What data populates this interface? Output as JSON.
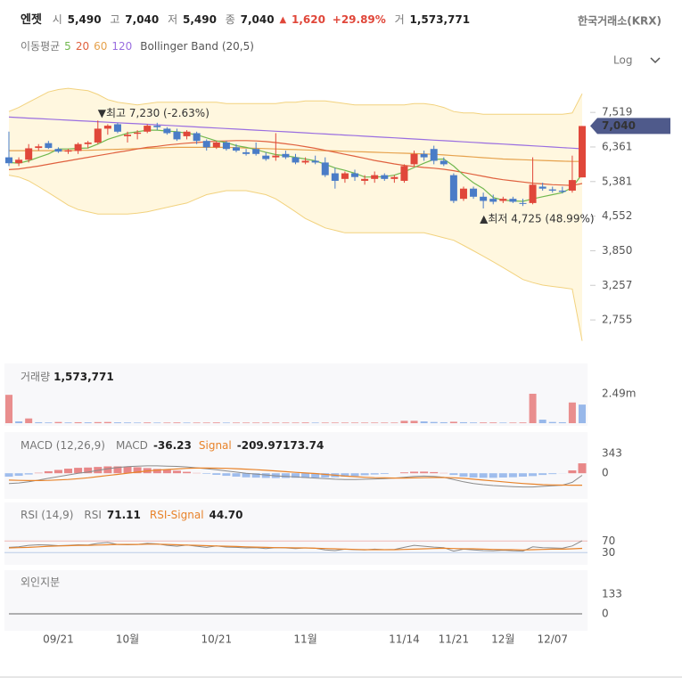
{
  "header": {
    "name": "엔젯",
    "open_label": "시",
    "open": "5,490",
    "high_label": "고",
    "high": "7,040",
    "low_label": "저",
    "low": "5,490",
    "close_label": "종",
    "close": "7,040",
    "change_arrow": "▲",
    "change": "1,620",
    "change_pct": "+29.89%",
    "volume_label": "거",
    "volume": "1,573,771",
    "exchange": "한국거래소(KRX)",
    "ma_label": "이동평균",
    "scale_button": "Log"
  },
  "chart_data": {
    "type": "candlestick",
    "log_scale": true,
    "categories": [
      null,
      null,
      null,
      null,
      null,
      "09/21",
      null,
      null,
      null,
      null,
      null,
      null,
      "10월",
      null,
      null,
      null,
      null,
      null,
      null,
      null,
      null,
      "10/21",
      null,
      null,
      null,
      null,
      null,
      null,
      null,
      null,
      "11월",
      null,
      null,
      null,
      null,
      null,
      null,
      null,
      null,
      null,
      "11/14",
      null,
      null,
      null,
      null,
      "11/21",
      null,
      null,
      null,
      null,
      "12월",
      null,
      null,
      null,
      null,
      "12/07",
      null,
      null,
      null
    ],
    "ylim": [
      2360,
      8600
    ],
    "yticks": [
      {
        "value": 7519,
        "label": "7,519"
      },
      {
        "value": 6361,
        "label": "6,361"
      },
      {
        "value": 5381,
        "label": "5,381"
      },
      {
        "value": 4552,
        "label": "4,552"
      },
      {
        "value": 3850,
        "label": "3,850"
      },
      {
        "value": 3257,
        "label": "3,257"
      },
      {
        "value": 2755,
        "label": "2,755"
      }
    ],
    "candles": {
      "up_color": "#e0473a",
      "down_color": "#4a7cc7",
      "open": [
        6050,
        5880,
        5980,
        6330,
        6480,
        6300,
        6220,
        6240,
        6450,
        6500,
        6950,
        7100,
        6700,
        6780,
        6850,
        7050,
        6950,
        6850,
        6700,
        6800,
        6550,
        6350,
        6500,
        6350,
        6200,
        6300,
        6100,
        6050,
        6150,
        6050,
        5900,
        5950,
        5900,
        5600,
        5450,
        5600,
        5400,
        5450,
        5550,
        5450,
        5400,
        5850,
        6150,
        6300,
        5950,
        5550,
        4950,
        5200,
        5000,
        4950,
        4900,
        4950,
        4850,
        4850,
        5250,
        5180,
        5150,
        5150,
        5490
      ],
      "high": [
        6850,
        6050,
        6450,
        6450,
        6550,
        6350,
        6300,
        6500,
        6550,
        7230,
        7100,
        7150,
        6850,
        6900,
        7100,
        7150,
        7000,
        6950,
        6900,
        6850,
        6600,
        6550,
        6550,
        6450,
        6300,
        6500,
        6200,
        6800,
        6250,
        6150,
        6050,
        6100,
        6050,
        5750,
        5650,
        5700,
        5550,
        5650,
        5600,
        5550,
        5850,
        6250,
        6250,
        6400,
        6050,
        5600,
        5250,
        5250,
        5100,
        5050,
        5000,
        5000,
        4950,
        6050,
        5350,
        5250,
        5250,
        6100,
        7040
      ],
      "low": [
        5800,
        5800,
        5900,
        6250,
        6300,
        6180,
        6150,
        6150,
        6320,
        6450,
        6750,
        6800,
        6500,
        6600,
        6800,
        6900,
        6750,
        6550,
        6600,
        6450,
        6250,
        6300,
        6250,
        6200,
        6100,
        6100,
        5950,
        5950,
        6000,
        5850,
        5850,
        5850,
        5500,
        5200,
        5350,
        5400,
        5300,
        5350,
        5400,
        5350,
        5350,
        5800,
        5950,
        5850,
        5800,
        4850,
        4900,
        4950,
        4725,
        4820,
        4850,
        4850,
        4780,
        4820,
        5150,
        5100,
        5080,
        5100,
        5490
      ],
      "close": [
        5880,
        5980,
        6320,
        6380,
        6330,
        6220,
        6260,
        6450,
        6500,
        6950,
        7050,
        6850,
        6750,
        6820,
        7050,
        7000,
        6800,
        6600,
        6850,
        6550,
        6350,
        6500,
        6300,
        6250,
        6150,
        6150,
        6000,
        6100,
        6050,
        5900,
        5950,
        5900,
        5550,
        5400,
        5600,
        5500,
        5450,
        5550,
        5450,
        5500,
        5800,
        6150,
        6050,
        5950,
        5850,
        4900,
        5200,
        5000,
        4900,
        4880,
        4950,
        4880,
        4830,
        5300,
        5200,
        5150,
        5120,
        5420,
        7040
      ]
    },
    "moving_averages": [
      {
        "name": "5",
        "color": "#72b84f",
        "values": [
          5900,
          5880,
          5950,
          6050,
          6150,
          6300,
          6300,
          6320,
          6330,
          6450,
          6600,
          6700,
          6800,
          6850,
          6900,
          6900,
          6870,
          6850,
          6800,
          6750,
          6650,
          6550,
          6500,
          6400,
          6350,
          6280,
          6200,
          6130,
          6100,
          6050,
          6000,
          5950,
          5850,
          5750,
          5680,
          5600,
          5500,
          5500,
          5510,
          5550,
          5640,
          5760,
          5880,
          5990,
          6000,
          5800,
          5550,
          5350,
          5200,
          4980,
          4920,
          4900,
          4890,
          4950,
          5000,
          5050,
          5100,
          5230,
          5580
        ]
      },
      {
        "name": "20",
        "color": "#e0613f",
        "values": [
          5700,
          5720,
          5760,
          5800,
          5850,
          5900,
          5950,
          6000,
          6050,
          6100,
          6150,
          6200,
          6250,
          6300,
          6350,
          6380,
          6420,
          6450,
          6480,
          6500,
          6520,
          6540,
          6550,
          6560,
          6560,
          6550,
          6530,
          6500,
          6460,
          6420,
          6370,
          6320,
          6260,
          6200,
          6140,
          6080,
          6020,
          5960,
          5910,
          5860,
          5820,
          5790,
          5760,
          5740,
          5710,
          5670,
          5620,
          5570,
          5520,
          5470,
          5430,
          5400,
          5370,
          5340,
          5320,
          5300,
          5290,
          5280,
          5330
        ]
      },
      {
        "name": "60",
        "color": "#e6a24d",
        "values": [
          6250,
          6250,
          6250,
          6250,
          6250,
          6250,
          6250,
          6260,
          6260,
          6270,
          6280,
          6290,
          6300,
          6310,
          6320,
          6330,
          6340,
          6350,
          6350,
          6350,
          6350,
          6350,
          6350,
          6340,
          6330,
          6320,
          6310,
          6300,
          6290,
          6280,
          6270,
          6260,
          6250,
          6240,
          6230,
          6220,
          6210,
          6200,
          6190,
          6180,
          6170,
          6160,
          6150,
          6140,
          6120,
          6100,
          6080,
          6060,
          6040,
          6020,
          6000,
          5990,
          5980,
          5970,
          5960,
          5950,
          5940,
          5930,
          5930
        ]
      },
      {
        "name": "120",
        "color": "#9a6ee0",
        "values": [
          7350,
          7332,
          7314,
          7296,
          7278,
          7260,
          7242,
          7224,
          7206,
          7188,
          7170,
          7152,
          7134,
          7116,
          7098,
          7080,
          7062,
          7044,
          7026,
          7008,
          6990,
          6972,
          6954,
          6936,
          6918,
          6900,
          6882,
          6864,
          6846,
          6828,
          6810,
          6792,
          6774,
          6756,
          6738,
          6720,
          6702,
          6684,
          6666,
          6648,
          6630,
          6612,
          6594,
          6576,
          6558,
          6540,
          6522,
          6504,
          6486,
          6468,
          6450,
          6432,
          6414,
          6396,
          6378,
          6360,
          6342,
          6324,
          6306
        ]
      }
    ],
    "bollinger": {
      "name": "Bollinger Band (20,5)",
      "color": "#f2d27e",
      "fill": "#fff7df",
      "upper": [
        7550,
        7700,
        7900,
        8100,
        8300,
        8400,
        8450,
        8400,
        8350,
        8200,
        8000,
        7900,
        7850,
        7800,
        7850,
        7900,
        7900,
        7900,
        7900,
        7900,
        7900,
        7900,
        7850,
        7850,
        7850,
        7850,
        7850,
        7850,
        7900,
        7900,
        7950,
        7950,
        7950,
        7900,
        7850,
        7800,
        7800,
        7800,
        7800,
        7800,
        7800,
        7850,
        7850,
        7800,
        7700,
        7550,
        7500,
        7500,
        7450,
        7450,
        7450,
        7450,
        7450,
        7450,
        7450,
        7450,
        7450,
        7500,
        8230
      ],
      "lower": [
        5550,
        5500,
        5400,
        5250,
        5100,
        4950,
        4800,
        4700,
        4650,
        4600,
        4600,
        4600,
        4600,
        4620,
        4650,
        4700,
        4750,
        4800,
        4850,
        4950,
        5050,
        5100,
        5150,
        5150,
        5150,
        5100,
        5050,
        4950,
        4800,
        4650,
        4500,
        4400,
        4300,
        4250,
        4200,
        4200,
        4200,
        4200,
        4200,
        4200,
        4200,
        4200,
        4200,
        4150,
        4100,
        4050,
        3950,
        3850,
        3750,
        3650,
        3550,
        3450,
        3350,
        3300,
        3260,
        3240,
        3220,
        3200,
        2490
      ]
    },
    "max_label": "▼최고 7,230 (-2.63%)",
    "min_label": "▲최저 4,725 (48.99%)",
    "volume": {
      "title": "거래량",
      "value": "1,573,771",
      "up_color": "#e57373",
      "down_color": "#7fa8e6",
      "ylim": [
        0,
        4900000
      ],
      "yticks": [
        {
          "value": 2490000,
          "label": "2.49m"
        }
      ],
      "values": [
        2400000,
        150000,
        400000,
        80000,
        60000,
        100000,
        60000,
        80000,
        70000,
        90000,
        100000,
        70000,
        60000,
        50000,
        60000,
        50000,
        50000,
        60000,
        50000,
        50000,
        50000,
        60000,
        50000,
        50000,
        50000,
        50000,
        50000,
        50000,
        50000,
        50000,
        60000,
        50000,
        50000,
        50000,
        50000,
        50000,
        50000,
        50000,
        50000,
        50000,
        200000,
        200000,
        150000,
        100000,
        80000,
        120000,
        80000,
        60000,
        60000,
        60000,
        50000,
        50000,
        60000,
        2490000,
        300000,
        100000,
        80000,
        1750000,
        1573771
      ]
    },
    "macd": {
      "title": "MACD (12,26,9)",
      "macd_label": "MACD",
      "macd_value": "-36.23",
      "signal_label": "Signal",
      "signal_value": "-209.97",
      "hist_value": "173.74",
      "macd_color": "#8a8a8a",
      "signal_color": "#e8832a",
      "pos_color": "#e57373",
      "neg_color": "#8fb3ea",
      "ylim": [
        -450,
        690
      ],
      "yticks": [
        343,
        0
      ],
      "macd": [
        -180,
        -170,
        -150,
        -120,
        -90,
        -60,
        -30,
        0,
        20,
        50,
        80,
        100,
        115,
        125,
        130,
        130,
        125,
        120,
        110,
        95,
        80,
        60,
        40,
        20,
        0,
        -15,
        -30,
        -45,
        -55,
        -65,
        -75,
        -85,
        -95,
        -105,
        -110,
        -110,
        -105,
        -100,
        -95,
        -85,
        -70,
        -55,
        -50,
        -55,
        -70,
        -110,
        -150,
        -180,
        -200,
        -215,
        -225,
        -235,
        -240,
        -240,
        -230,
        -220,
        -210,
        -160,
        -36.23
      ],
      "signal": [
        -120,
        -125,
        -128,
        -128,
        -125,
        -118,
        -110,
        -95,
        -80,
        -60,
        -40,
        -20,
        0,
        20,
        40,
        55,
        65,
        75,
        85,
        90,
        90,
        88,
        85,
        80,
        72,
        62,
        52,
        40,
        28,
        15,
        5,
        -5,
        -20,
        -35,
        -50,
        -60,
        -70,
        -78,
        -82,
        -85,
        -85,
        -82,
        -78,
        -75,
        -75,
        -80,
        -90,
        -105,
        -120,
        -135,
        -150,
        -165,
        -180,
        -190,
        -200,
        -205,
        -208,
        -210,
        -209.97
      ],
      "histogram": [
        -60,
        -45,
        -22,
        8,
        35,
        58,
        80,
        95,
        100,
        110,
        120,
        120,
        115,
        105,
        90,
        75,
        60,
        45,
        25,
        5,
        -10,
        -28,
        -45,
        -60,
        -72,
        -77,
        -82,
        -85,
        -83,
        -80,
        -80,
        -80,
        -75,
        -70,
        -60,
        -50,
        -35,
        -22,
        -13,
        0,
        15,
        27,
        28,
        20,
        5,
        -30,
        -60,
        -75,
        -80,
        -80,
        -75,
        -70,
        -60,
        -50,
        -30,
        -15,
        -2,
        50,
        173.74
      ]
    },
    "rsi": {
      "title": "RSI (14,9)",
      "rsi_label": "RSI",
      "rsi_value": "71.11",
      "signal_label": "RSI-Signal",
      "signal_value": "44.70",
      "rsi_color": "#8a8a8a",
      "signal_color": "#e8832a",
      "ylim": [
        0,
        200
      ],
      "yticks": [
        70,
        30
      ],
      "tick_colors": [
        "#e0473a",
        "#4a7cc7"
      ],
      "rsi": [
        48,
        50,
        55,
        57,
        56,
        54,
        55,
        57,
        56,
        62,
        65,
        58,
        57,
        58,
        62,
        60,
        55,
        52,
        56,
        52,
        48,
        53,
        49,
        48,
        46,
        47,
        44,
        47,
        46,
        44,
        46,
        45,
        39,
        37,
        42,
        40,
        39,
        42,
        40,
        41,
        48,
        55,
        52,
        49,
        47,
        35,
        42,
        39,
        37,
        36,
        38,
        36,
        35,
        50,
        47,
        46,
        45,
        53,
        71.11
      ],
      "signal": [
        46,
        47,
        48,
        50,
        52,
        53,
        54,
        55,
        55,
        56,
        57,
        58,
        58,
        58,
        59,
        59,
        58,
        57,
        56,
        55,
        54,
        53,
        52,
        51,
        50,
        49,
        48,
        47,
        47,
        46,
        46,
        45,
        44,
        43,
        42,
        41,
        40,
        40,
        40,
        40,
        41,
        42,
        43,
        44,
        45,
        44,
        43,
        43,
        42,
        41,
        40,
        40,
        39,
        40,
        41,
        42,
        42,
        43,
        44.7
      ]
    },
    "foreign": {
      "title": "외인지분",
      "color": "#666666",
      "ylim": [
        -97,
        290
      ],
      "yticks": [
        133,
        0
      ],
      "values": [
        0,
        0,
        0,
        0,
        0,
        0,
        0,
        0,
        0,
        0,
        0,
        0,
        0,
        0,
        0,
        0,
        0,
        0,
        0,
        0,
        0,
        0,
        0,
        0,
        0,
        0,
        0,
        0,
        0,
        0,
        0,
        0,
        0,
        0,
        0,
        0,
        0,
        0,
        0,
        0,
        0,
        0,
        0,
        0,
        0,
        0,
        0,
        0,
        0,
        0,
        0,
        0,
        0,
        0,
        0,
        0,
        0,
        0,
        0
      ]
    }
  }
}
